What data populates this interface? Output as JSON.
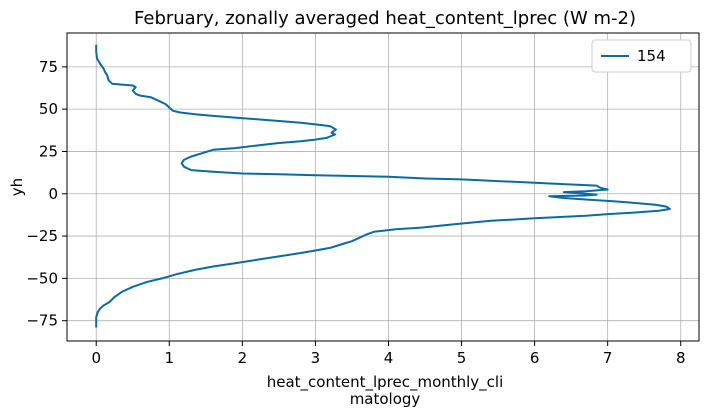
{
  "chart_data": {
    "type": "line",
    "title": "February, zonally averaged heat_content_lprec (W m-2)",
    "xlabel_lines": [
      "heat_content_lprec_monthly_cli",
      "matology"
    ],
    "ylabel": "yh",
    "xlim": [
      -0.4,
      8.25
    ],
    "ylim": [
      -87,
      95
    ],
    "xticks": [
      0,
      1,
      2,
      3,
      4,
      5,
      6,
      7,
      8
    ],
    "yticks": [
      -75,
      -50,
      -25,
      0,
      25,
      50,
      75
    ],
    "grid": true,
    "legend_position": "upper-right",
    "series": [
      {
        "name": "154",
        "color": "#0b6aa2",
        "points": [
          [
            0.0,
            88
          ],
          [
            0.0,
            84
          ],
          [
            0.01,
            80
          ],
          [
            0.05,
            77
          ],
          [
            0.1,
            74
          ],
          [
            0.12,
            72
          ],
          [
            0.15,
            70
          ],
          [
            0.17,
            67
          ],
          [
            0.22,
            65
          ],
          [
            0.35,
            64.5
          ],
          [
            0.5,
            64
          ],
          [
            0.54,
            63
          ],
          [
            0.5,
            61
          ],
          [
            0.54,
            59
          ],
          [
            0.6,
            58
          ],
          [
            0.75,
            57
          ],
          [
            0.85,
            55
          ],
          [
            0.95,
            53
          ],
          [
            1.0,
            51
          ],
          [
            1.05,
            49
          ],
          [
            1.15,
            48
          ],
          [
            1.35,
            47
          ],
          [
            1.6,
            46
          ],
          [
            1.9,
            45
          ],
          [
            2.2,
            44
          ],
          [
            2.5,
            43
          ],
          [
            2.8,
            42
          ],
          [
            3.0,
            41
          ],
          [
            3.2,
            40
          ],
          [
            3.28,
            38
          ],
          [
            3.22,
            36
          ],
          [
            3.27,
            35
          ],
          [
            3.15,
            33
          ],
          [
            3.0,
            32
          ],
          [
            2.8,
            31
          ],
          [
            2.5,
            30
          ],
          [
            2.2,
            28.5
          ],
          [
            1.9,
            27
          ],
          [
            1.6,
            26
          ],
          [
            1.45,
            24
          ],
          [
            1.3,
            22
          ],
          [
            1.2,
            20
          ],
          [
            1.17,
            18
          ],
          [
            1.2,
            16
          ],
          [
            1.3,
            14
          ],
          [
            1.6,
            13
          ],
          [
            2.0,
            12
          ],
          [
            2.5,
            11.5
          ],
          [
            3.0,
            11
          ],
          [
            3.5,
            10.5
          ],
          [
            4.0,
            10
          ],
          [
            4.5,
            9
          ],
          [
            5.0,
            8.5
          ],
          [
            5.5,
            7.5
          ],
          [
            6.0,
            6.5
          ],
          [
            6.5,
            5.5
          ],
          [
            6.85,
            4.8
          ],
          [
            6.9,
            3.5
          ],
          [
            7.0,
            2.5
          ],
          [
            6.7,
            1.5
          ],
          [
            6.4,
            1.0
          ],
          [
            6.55,
            0.5
          ],
          [
            6.85,
            -0.5
          ],
          [
            6.7,
            -1.0
          ],
          [
            6.2,
            -1.5
          ],
          [
            6.4,
            -2.5
          ],
          [
            6.75,
            -3.5
          ],
          [
            7.1,
            -4.5
          ],
          [
            7.4,
            -5.5
          ],
          [
            7.65,
            -6.5
          ],
          [
            7.8,
            -7.5
          ],
          [
            7.85,
            -9
          ],
          [
            7.7,
            -10
          ],
          [
            7.4,
            -11
          ],
          [
            7.0,
            -12
          ],
          [
            6.7,
            -13
          ],
          [
            6.0,
            -14.5
          ],
          [
            5.4,
            -16
          ],
          [
            4.9,
            -18
          ],
          [
            4.45,
            -20
          ],
          [
            4.1,
            -21
          ],
          [
            3.8,
            -22.5
          ],
          [
            3.7,
            -24
          ],
          [
            3.6,
            -26
          ],
          [
            3.5,
            -28
          ],
          [
            3.35,
            -30
          ],
          [
            3.2,
            -32
          ],
          [
            3.0,
            -33.5
          ],
          [
            2.8,
            -35
          ],
          [
            2.5,
            -37
          ],
          [
            2.2,
            -39
          ],
          [
            1.9,
            -41
          ],
          [
            1.6,
            -43
          ],
          [
            1.35,
            -45
          ],
          [
            1.1,
            -47.5
          ],
          [
            0.9,
            -50
          ],
          [
            0.7,
            -52
          ],
          [
            0.5,
            -55
          ],
          [
            0.35,
            -58
          ],
          [
            0.25,
            -61
          ],
          [
            0.18,
            -64
          ],
          [
            0.1,
            -66
          ],
          [
            0.05,
            -68
          ],
          [
            0.02,
            -70
          ],
          [
            0.0,
            -73
          ],
          [
            0.0,
            -76
          ],
          [
            0.0,
            -79
          ]
        ]
      }
    ]
  }
}
